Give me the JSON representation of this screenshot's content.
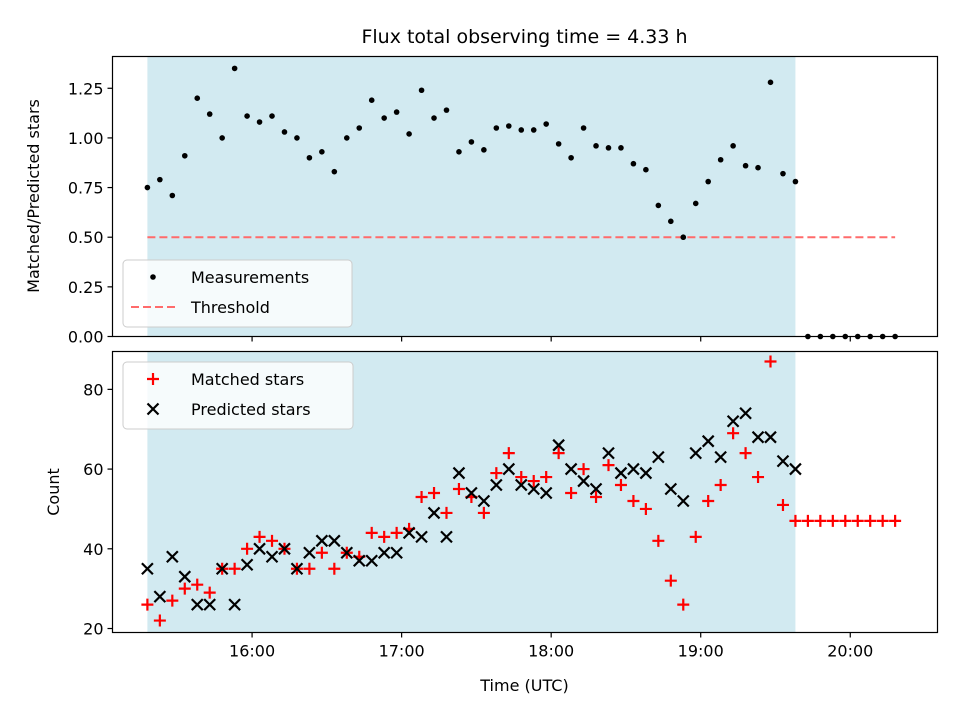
{
  "chart_data": {
    "title": "Flux total observing time = 4.33 h",
    "xlabel": "Time (UTC)",
    "x_ticks": [
      "16:00",
      "17:00",
      "18:00",
      "19:00",
      "20:00"
    ],
    "x_tick_values": [
      "16:00",
      "17:00",
      "18:00",
      "19:00",
      "20:00"
    ],
    "x_range": [
      "15:04",
      "20:35"
    ],
    "observing_window": [
      "15:18",
      "19:38"
    ],
    "colors": {
      "window": "#add8e6",
      "measurements": "#000000",
      "threshold": "#ff6b6b",
      "matched": "#ff0000",
      "predicted": "#000000"
    },
    "panels": [
      {
        "type": "scatter",
        "ylabel": "Matched/Predicted stars",
        "ylim": [
          0,
          1.41
        ],
        "y_ticks": [
          "0.00",
          "0.25",
          "0.50",
          "0.75",
          "1.00",
          "1.25"
        ],
        "y_tick_values": [
          0,
          0.25,
          0.5,
          0.75,
          1.0,
          1.25
        ],
        "legend_position": "lower-left",
        "series": [
          {
            "name": "Measurements",
            "marker": "dot",
            "x": [
              "15:18",
              "15:23",
              "15:28",
              "15:33",
              "15:38",
              "15:43",
              "15:48",
              "15:53",
              "15:58",
              "16:03",
              "16:08",
              "16:13",
              "16:18",
              "16:23",
              "16:28",
              "16:33",
              "16:38",
              "16:43",
              "16:48",
              "16:53",
              "16:58",
              "17:03",
              "17:08",
              "17:13",
              "17:18",
              "17:23",
              "17:28",
              "17:33",
              "17:38",
              "17:43",
              "17:48",
              "17:53",
              "17:58",
              "18:03",
              "18:08",
              "18:13",
              "18:18",
              "18:23",
              "18:28",
              "18:33",
              "18:38",
              "18:43",
              "18:48",
              "18:53",
              "18:58",
              "19:03",
              "19:08",
              "19:13",
              "19:18",
              "19:23",
              "19:28",
              "19:33",
              "19:38",
              "19:43",
              "19:48",
              "19:53",
              "19:58",
              "20:03",
              "20:08",
              "20:13",
              "20:18"
            ],
            "y": [
              0.75,
              0.79,
              0.71,
              0.91,
              1.2,
              1.12,
              1.0,
              1.35,
              1.11,
              1.08,
              1.11,
              1.03,
              1.0,
              0.9,
              0.93,
              0.83,
              1.0,
              1.05,
              1.19,
              1.1,
              1.13,
              1.02,
              1.24,
              1.1,
              1.14,
              0.93,
              0.98,
              0.94,
              1.05,
              1.06,
              1.04,
              1.04,
              1.07,
              0.97,
              0.9,
              1.05,
              0.96,
              0.95,
              0.95,
              0.87,
              0.84,
              0.66,
              0.58,
              0.5,
              0.67,
              0.78,
              0.89,
              0.96,
              0.86,
              0.85,
              1.28,
              0.82,
              0.78,
              0,
              0,
              0,
              0,
              0,
              0,
              0,
              0
            ]
          },
          {
            "name": "Threshold",
            "marker": "dashed-line",
            "x": [
              "15:18",
              "20:18"
            ],
            "y": [
              0.5,
              0.5
            ]
          }
        ]
      },
      {
        "type": "scatter",
        "ylabel": "Count",
        "ylim": [
          19,
          89.5
        ],
        "y_ticks": [
          "20",
          "40",
          "60",
          "80"
        ],
        "y_tick_values": [
          20,
          40,
          60,
          80
        ],
        "legend_position": "upper-left",
        "series": [
          {
            "name": "Matched stars",
            "marker": "plus",
            "x": [
              "15:18",
              "15:23",
              "15:28",
              "15:33",
              "15:38",
              "15:43",
              "15:48",
              "15:53",
              "15:58",
              "16:03",
              "16:08",
              "16:13",
              "16:18",
              "16:23",
              "16:28",
              "16:33",
              "16:38",
              "16:43",
              "16:48",
              "16:53",
              "16:58",
              "17:03",
              "17:08",
              "17:13",
              "17:18",
              "17:23",
              "17:28",
              "17:33",
              "17:38",
              "17:43",
              "17:48",
              "17:53",
              "17:58",
              "18:03",
              "18:08",
              "18:13",
              "18:18",
              "18:23",
              "18:28",
              "18:33",
              "18:38",
              "18:43",
              "18:48",
              "18:53",
              "18:58",
              "19:03",
              "19:08",
              "19:13",
              "19:18",
              "19:23",
              "19:28",
              "19:33",
              "19:38",
              "19:43",
              "19:48",
              "19:53",
              "19:58",
              "20:03",
              "20:08",
              "20:13",
              "20:18"
            ],
            "y": [
              26,
              22,
              27,
              30,
              31,
              29,
              35,
              35,
              40,
              43,
              42,
              40,
              35,
              35,
              39,
              35,
              39,
              38,
              44,
              43,
              44,
              45,
              53,
              54,
              49,
              55,
              53,
              49,
              59,
              64,
              58,
              57,
              58,
              64,
              54,
              60,
              53,
              61,
              56,
              52,
              50,
              42,
              32,
              26,
              43,
              52,
              56,
              69,
              64,
              58,
              87,
              51,
              47,
              47,
              47,
              47,
              47,
              47,
              47,
              47,
              47
            ]
          },
          {
            "name": "Predicted stars",
            "marker": "x",
            "x": [
              "15:18",
              "15:23",
              "15:28",
              "15:33",
              "15:38",
              "15:43",
              "15:48",
              "15:53",
              "15:58",
              "16:03",
              "16:08",
              "16:13",
              "16:18",
              "16:23",
              "16:28",
              "16:33",
              "16:38",
              "16:43",
              "16:48",
              "16:53",
              "16:58",
              "17:03",
              "17:08",
              "17:13",
              "17:18",
              "17:23",
              "17:28",
              "17:33",
              "17:38",
              "17:43",
              "17:48",
              "17:53",
              "17:58",
              "18:03",
              "18:08",
              "18:13",
              "18:18",
              "18:23",
              "18:28",
              "18:33",
              "18:38",
              "18:43",
              "18:48",
              "18:53",
              "18:58",
              "19:03",
              "19:08",
              "19:13",
              "19:18",
              "19:23",
              "19:28",
              "19:33",
              "19:38"
            ],
            "y": [
              35,
              28,
              38,
              33,
              26,
              26,
              35,
              26,
              36,
              40,
              38,
              40,
              35,
              39,
              42,
              42,
              39,
              37,
              37,
              39,
              39,
              44,
              43,
              49,
              43,
              59,
              54,
              52,
              56,
              60,
              56,
              55,
              54,
              66,
              60,
              57,
              55,
              64,
              59,
              60,
              59,
              63,
              55,
              52,
              64,
              67,
              63,
              72,
              74,
              68,
              68,
              62,
              60
            ]
          }
        ]
      }
    ]
  }
}
